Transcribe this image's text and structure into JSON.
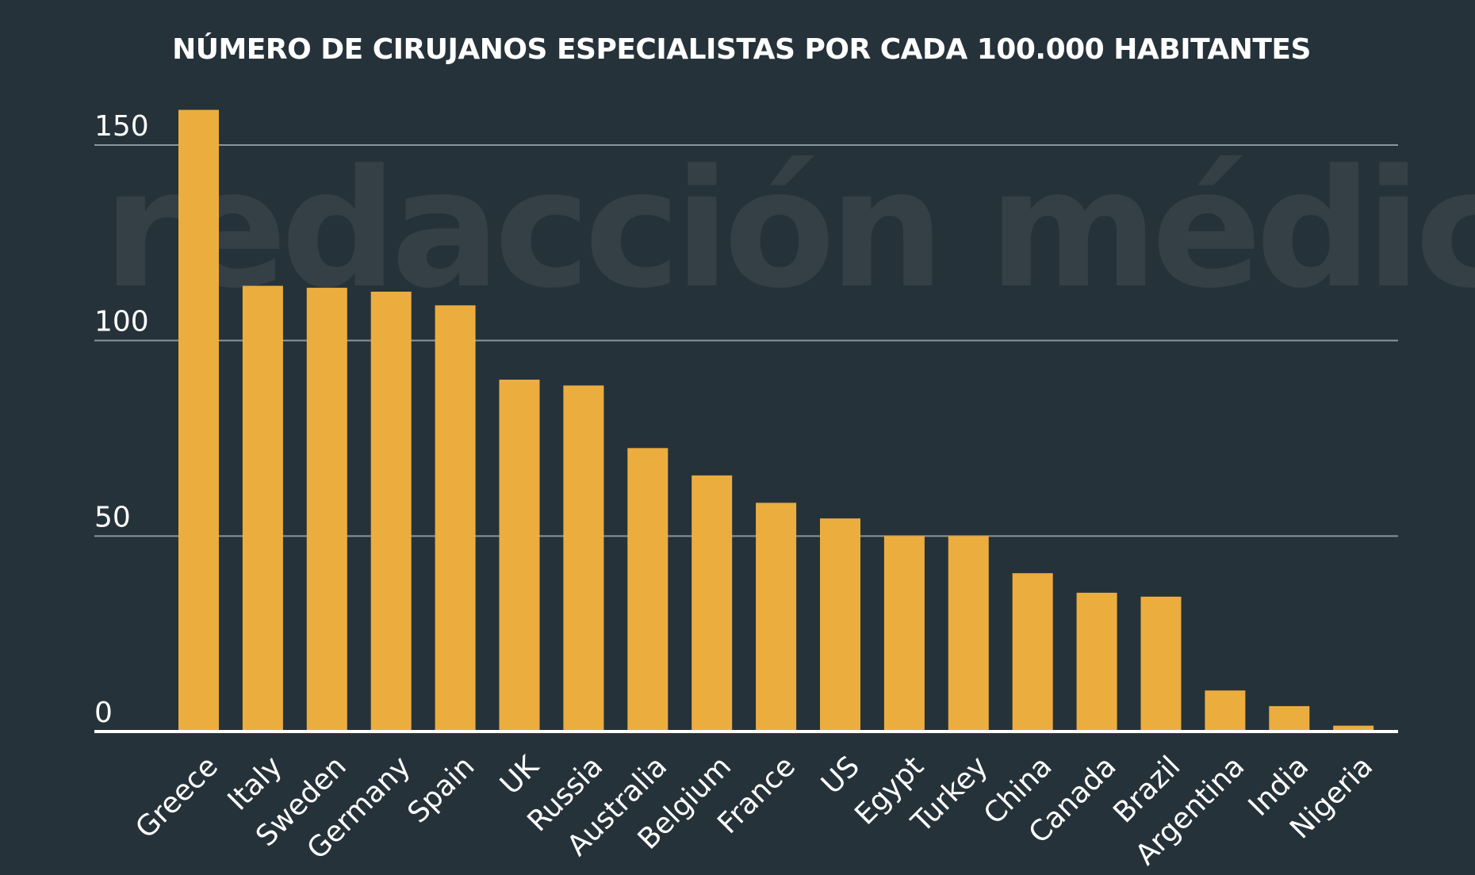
{
  "watermark": "redacción médica",
  "chart_data": {
    "type": "bar",
    "title": "NÚMERO DE CIRUJANOS ESPECIALISTAS POR CADA 100.000 HABITANTES",
    "xlabel": "",
    "ylabel": "",
    "ylim": [
      0,
      150
    ],
    "yticks": [
      0,
      50,
      100,
      150
    ],
    "grid": true,
    "categories": [
      "Greece",
      "Italy",
      "Sweden",
      "Germany",
      "Spain",
      "UK",
      "Russia",
      "Australia",
      "Belgium",
      "France",
      "US",
      "Egypt",
      "Turkey",
      "China",
      "Canada",
      "Brazil",
      "Argentina",
      "India",
      "Nigeria"
    ],
    "values": [
      159,
      114,
      113.5,
      112.5,
      109,
      90,
      88.5,
      72.5,
      65.5,
      58.5,
      54.5,
      50,
      50,
      40.5,
      35.5,
      34.5,
      10.5,
      6.5,
      1.5
    ],
    "colors": {
      "bar": "#ecad3f",
      "background": "#263239",
      "grid": "#8a969c",
      "axis": "#ffffff",
      "text": "#ffffff"
    }
  }
}
